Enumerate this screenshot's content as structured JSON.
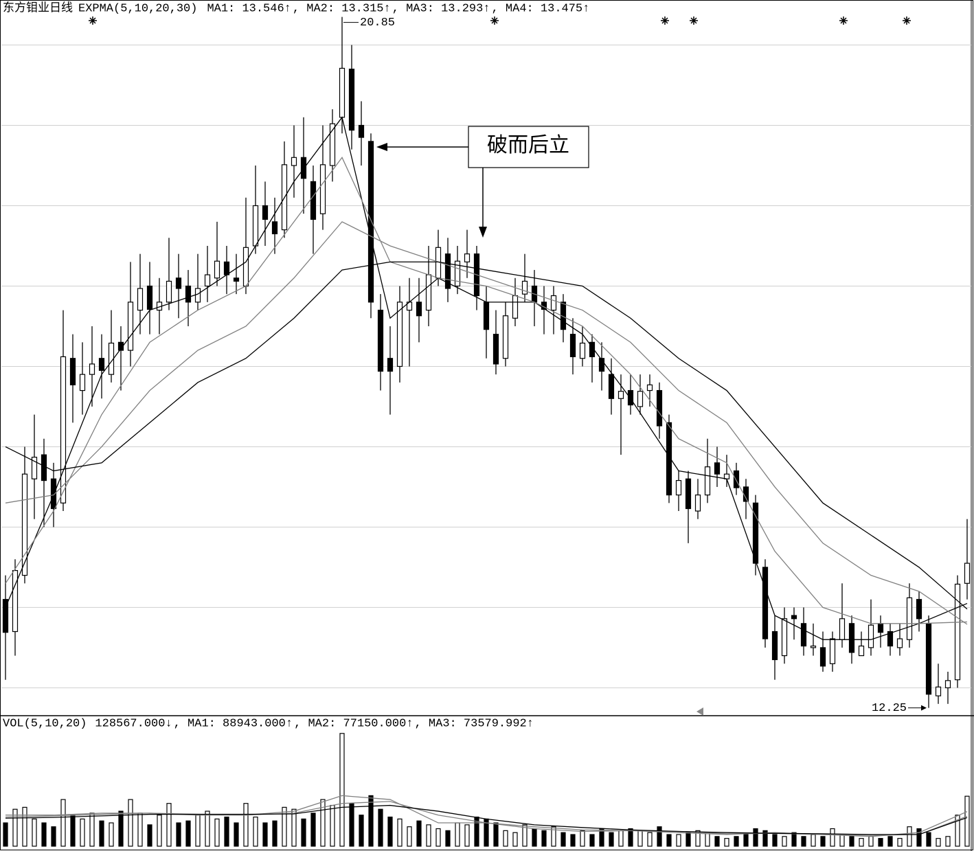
{
  "chart_data": [
    {
      "type": "candlestick",
      "title": "东方钼业日线",
      "indicator": "EXPMA(5,10,20,30)",
      "ylim": [
        12.17,
        21.06
      ],
      "grid_levels": [
        12.5,
        13.5,
        14.5,
        15.5,
        16.5,
        17.5,
        18.5,
        19.5,
        20.5
      ],
      "ohlc": [
        [
          13.6,
          13.9,
          12.6,
          13.19
        ],
        [
          13.2,
          14.1,
          12.9,
          13.96
        ],
        [
          13.9,
          15.5,
          13.8,
          15.16
        ],
        [
          15.1,
          15.9,
          14.6,
          15.37
        ],
        [
          15.4,
          15.6,
          14.5,
          15.08
        ],
        [
          15.1,
          15.3,
          14.5,
          14.73
        ],
        [
          14.8,
          17.2,
          14.7,
          16.62
        ],
        [
          16.6,
          16.9,
          15.8,
          16.27
        ],
        [
          16.2,
          16.8,
          15.9,
          16.4
        ],
        [
          16.4,
          17.0,
          16.0,
          16.53
        ],
        [
          16.6,
          16.9,
          16.1,
          16.45
        ],
        [
          16.4,
          17.2,
          16.3,
          16.79
        ],
        [
          16.8,
          17.0,
          16.2,
          16.7
        ],
        [
          16.7,
          17.8,
          16.5,
          17.3
        ],
        [
          17.2,
          17.9,
          16.9,
          17.47
        ],
        [
          17.5,
          17.8,
          16.9,
          17.21
        ],
        [
          17.2,
          17.6,
          16.9,
          17.3
        ],
        [
          17.3,
          18.1,
          17.2,
          17.56
        ],
        [
          17.6,
          17.9,
          17.1,
          17.47
        ],
        [
          17.5,
          17.7,
          17.0,
          17.3
        ],
        [
          17.3,
          17.9,
          17.2,
          17.47
        ],
        [
          17.5,
          18.0,
          17.3,
          17.64
        ],
        [
          17.6,
          18.3,
          17.5,
          17.81
        ],
        [
          17.8,
          18.0,
          17.4,
          17.64
        ],
        [
          17.6,
          17.9,
          17.4,
          17.56
        ],
        [
          17.5,
          18.6,
          17.4,
          17.98
        ],
        [
          18.0,
          19.0,
          17.9,
          18.5
        ],
        [
          18.5,
          18.8,
          18.0,
          18.33
        ],
        [
          18.3,
          18.6,
          17.9,
          18.15
        ],
        [
          18.2,
          19.3,
          18.1,
          19.01
        ],
        [
          19.0,
          19.5,
          18.6,
          19.1
        ],
        [
          19.1,
          19.6,
          18.4,
          18.84
        ],
        [
          18.8,
          19.0,
          17.9,
          18.33
        ],
        [
          18.4,
          19.5,
          18.2,
          19.01
        ],
        [
          19.0,
          19.7,
          18.8,
          19.52
        ],
        [
          19.6,
          20.85,
          19.4,
          20.21
        ],
        [
          20.2,
          20.5,
          19.2,
          19.44
        ],
        [
          19.5,
          19.8,
          19.0,
          19.35
        ],
        [
          19.3,
          19.4,
          17.1,
          17.3
        ],
        [
          17.2,
          17.4,
          16.2,
          16.44
        ],
        [
          16.6,
          17.0,
          15.9,
          16.44
        ],
        [
          16.5,
          17.5,
          16.3,
          17.3
        ],
        [
          17.2,
          17.6,
          16.5,
          17.3
        ],
        [
          17.3,
          17.6,
          16.8,
          17.13
        ],
        [
          17.2,
          18.0,
          17.0,
          17.64
        ],
        [
          17.6,
          18.2,
          17.5,
          17.98
        ],
        [
          17.9,
          18.1,
          17.3,
          17.47
        ],
        [
          17.5,
          18.0,
          17.4,
          17.81
        ],
        [
          17.8,
          18.2,
          17.6,
          17.9
        ],
        [
          17.9,
          18.0,
          17.2,
          17.38
        ],
        [
          17.3,
          17.5,
          16.6,
          16.96
        ],
        [
          16.9,
          17.2,
          16.4,
          16.53
        ],
        [
          16.6,
          17.3,
          16.5,
          17.13
        ],
        [
          17.1,
          17.6,
          17.0,
          17.38
        ],
        [
          17.4,
          17.9,
          17.3,
          17.56
        ],
        [
          17.5,
          17.7,
          17.0,
          17.3
        ],
        [
          17.3,
          17.5,
          16.9,
          17.21
        ],
        [
          17.2,
          17.5,
          16.9,
          17.38
        ],
        [
          17.3,
          17.4,
          16.8,
          16.96
        ],
        [
          16.9,
          17.1,
          16.4,
          16.62
        ],
        [
          16.6,
          17.0,
          16.5,
          16.79
        ],
        [
          16.8,
          16.9,
          16.3,
          16.62
        ],
        [
          16.6,
          16.8,
          16.2,
          16.44
        ],
        [
          16.4,
          16.6,
          15.9,
          16.1
        ],
        [
          16.1,
          16.4,
          15.4,
          16.19
        ],
        [
          16.2,
          16.4,
          15.9,
          16.02
        ],
        [
          16.0,
          16.4,
          15.9,
          16.19
        ],
        [
          16.2,
          16.4,
          16.0,
          16.27
        ],
        [
          16.2,
          16.3,
          15.6,
          15.76
        ],
        [
          15.8,
          15.9,
          14.8,
          14.9
        ],
        [
          14.9,
          15.2,
          14.7,
          15.08
        ],
        [
          15.1,
          15.2,
          14.3,
          14.73
        ],
        [
          14.7,
          15.1,
          14.6,
          14.9
        ],
        [
          14.9,
          15.6,
          14.8,
          15.25
        ],
        [
          15.3,
          15.5,
          15.0,
          15.16
        ],
        [
          15.1,
          15.4,
          15.0,
          15.16
        ],
        [
          15.2,
          15.3,
          14.9,
          14.99
        ],
        [
          15.0,
          15.1,
          14.6,
          14.82
        ],
        [
          14.8,
          14.9,
          13.9,
          14.05
        ],
        [
          14.0,
          14.1,
          13.0,
          13.11
        ],
        [
          13.2,
          13.4,
          12.6,
          12.85
        ],
        [
          12.9,
          13.5,
          12.8,
          13.36
        ],
        [
          13.4,
          13.5,
          13.1,
          13.36
        ],
        [
          13.3,
          13.5,
          12.9,
          13.02
        ],
        [
          13.0,
          13.3,
          12.9,
          13.02
        ],
        [
          13.0,
          13.2,
          12.7,
          12.77
        ],
        [
          12.8,
          13.2,
          12.7,
          13.11
        ],
        [
          13.1,
          13.8,
          13.0,
          13.36
        ],
        [
          13.3,
          13.4,
          12.8,
          12.94
        ],
        [
          12.9,
          13.2,
          12.9,
          13.02
        ],
        [
          13.0,
          13.6,
          12.9,
          13.28
        ],
        [
          13.3,
          13.4,
          13.0,
          13.19
        ],
        [
          13.2,
          13.3,
          12.9,
          13.02
        ],
        [
          13.0,
          13.3,
          12.9,
          13.11
        ],
        [
          13.1,
          13.8,
          13.0,
          13.62
        ],
        [
          13.6,
          13.7,
          13.2,
          13.36
        ],
        [
          13.3,
          13.4,
          12.25,
          12.42
        ],
        [
          12.4,
          12.8,
          12.3,
          12.51
        ],
        [
          12.5,
          12.7,
          12.3,
          12.59
        ],
        [
          12.6,
          13.9,
          12.5,
          13.79
        ],
        [
          13.8,
          14.6,
          13.6,
          14.05
        ]
      ],
      "series": [
        {
          "label": "MA1: 13.546↑",
          "color": "#000000",
          "x": [
            0,
            5,
            10,
            15,
            20,
            25,
            30,
            35,
            40,
            45,
            50,
            55,
            60,
            65,
            70,
            75,
            80,
            85,
            90,
            95,
            100
          ],
          "values": [
            13.5,
            14.9,
            16.4,
            17.2,
            17.4,
            17.8,
            18.8,
            19.6,
            17.1,
            17.6,
            17.3,
            17.3,
            16.9,
            16.1,
            15.2,
            15.1,
            13.4,
            13.1,
            13.1,
            13.3,
            13.55
          ]
        },
        {
          "label": ", MA2: 13.315↑",
          "color": "#808080",
          "x": [
            0,
            5,
            10,
            15,
            20,
            25,
            30,
            35,
            40,
            45,
            50,
            55,
            60,
            65,
            70,
            75,
            80,
            85,
            90,
            95,
            100
          ],
          "values": [
            13.8,
            14.7,
            15.9,
            16.8,
            17.2,
            17.5,
            18.3,
            19.1,
            17.8,
            17.6,
            17.5,
            17.3,
            17.0,
            16.4,
            15.6,
            15.3,
            14.2,
            13.5,
            13.3,
            13.3,
            13.32
          ]
        },
        {
          "label": ", MA3: 13.293↑",
          "color": "#808080",
          "x": [
            0,
            5,
            10,
            15,
            20,
            25,
            30,
            35,
            40,
            45,
            50,
            55,
            60,
            65,
            70,
            75,
            80,
            85,
            90,
            95,
            100
          ],
          "values": [
            14.8,
            14.9,
            15.5,
            16.2,
            16.7,
            17.0,
            17.6,
            18.3,
            18.0,
            17.8,
            17.6,
            17.4,
            17.2,
            16.8,
            16.2,
            15.8,
            15.0,
            14.3,
            13.9,
            13.7,
            13.29
          ]
        },
        {
          "label": ", MA4: 13.475↑",
          "color": "#000000",
          "x": [
            0,
            5,
            10,
            15,
            20,
            25,
            30,
            35,
            40,
            45,
            50,
            55,
            60,
            65,
            70,
            75,
            80,
            85,
            90,
            95,
            100
          ],
          "values": [
            15.5,
            15.2,
            15.3,
            15.8,
            16.3,
            16.6,
            17.1,
            17.7,
            17.8,
            17.8,
            17.7,
            17.6,
            17.5,
            17.1,
            16.6,
            16.2,
            15.5,
            14.8,
            14.4,
            14.0,
            13.48
          ]
        }
      ],
      "annotations": [
        {
          "value": 20.85,
          "label": "20.85",
          "x": 35
        },
        {
          "value": 12.25,
          "label": "12.25",
          "x": 96
        },
        {
          "label": "破而后立"
        }
      ]
    },
    {
      "type": "bar",
      "title": "VOL(5,10,20)",
      "current_label": "128567.000↓",
      "ylim": [
        0,
        295000
      ],
      "values": [
        60000,
        95000,
        100000,
        70000,
        60000,
        50000,
        120000,
        80000,
        70000,
        85000,
        65000,
        60000,
        90000,
        120000,
        85000,
        55000,
        80000,
        110000,
        60000,
        65000,
        80000,
        90000,
        70000,
        75000,
        60000,
        110000,
        75000,
        60000,
        65000,
        100000,
        95000,
        70000,
        85000,
        120000,
        105000,
        290000,
        110000,
        80000,
        130000,
        95000,
        75000,
        70000,
        50000,
        65000,
        55000,
        45000,
        40000,
        60000,
        55000,
        75000,
        70000,
        60000,
        40000,
        35000,
        55000,
        45000,
        40000,
        50000,
        35000,
        30000,
        40000,
        30000,
        45000,
        35000,
        40000,
        45000,
        40000,
        35000,
        50000,
        30000,
        30000,
        35000,
        40000,
        35000,
        25000,
        20000,
        25000,
        30000,
        45000,
        40000,
        30000,
        25000,
        35000,
        25000,
        30000,
        25000,
        45000,
        30000,
        25000,
        20000,
        25000,
        20000,
        25000,
        20000,
        50000,
        45000,
        35000,
        20000,
        25000,
        80000,
        128567
      ],
      "series": [
        {
          "label": ", MA1: 88943.000↑",
          "color": "#808080",
          "x": [
            0,
            5,
            10,
            15,
            20,
            25,
            30,
            35,
            40,
            45,
            50,
            55,
            60,
            65,
            70,
            75,
            80,
            85,
            90,
            95,
            100
          ],
          "values": [
            80000,
            80000,
            85000,
            85000,
            80000,
            80000,
            90000,
            130000,
            120000,
            60000,
            60000,
            45000,
            38000,
            40000,
            35000,
            30000,
            35000,
            30000,
            25000,
            35000,
            88943
          ]
        },
        {
          "label": ", MA2: 77150.000↑",
          "color": "#808080",
          "x": [
            0,
            5,
            10,
            15,
            20,
            25,
            30,
            35,
            40,
            45,
            50,
            55,
            60,
            65,
            70,
            75,
            80,
            85,
            90,
            95,
            100
          ],
          "values": [
            75000,
            78000,
            82000,
            85000,
            82000,
            80000,
            85000,
            110000,
            115000,
            80000,
            60000,
            50000,
            42000,
            40000,
            38000,
            32000,
            33000,
            30000,
            28000,
            30000,
            77150
          ]
        },
        {
          "label": ", MA3: 73579.992↑",
          "color": "#000000",
          "x": [
            0,
            5,
            10,
            15,
            20,
            25,
            30,
            35,
            40,
            45,
            50,
            55,
            60,
            65,
            70,
            75,
            80,
            85,
            90,
            95,
            100
          ],
          "values": [
            72000,
            74000,
            78000,
            82000,
            82000,
            82000,
            83000,
            100000,
            105000,
            90000,
            70000,
            55000,
            48000,
            42000,
            38000,
            35000,
            33000,
            32000,
            30000,
            30000,
            73579.992
          ]
        }
      ]
    }
  ]
}
